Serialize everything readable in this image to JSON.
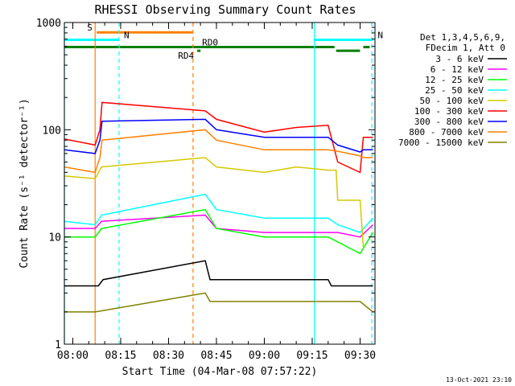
{
  "chart_data": {
    "type": "line",
    "title": "RHESSI Observing Summary Count Rates",
    "xlabel": "Start Time (04-Mar-08 07:57:22)",
    "ylabel": "Count Rate (s⁻¹ detector⁻¹)",
    "y_scale": "log",
    "ylim": [
      1,
      1000
    ],
    "xlim": [
      "07:57:22",
      "09:34:40"
    ],
    "x_ticks": [
      "08:00",
      "08:15",
      "08:30",
      "08:45",
      "09:00",
      "09:15",
      "09:30"
    ],
    "y_ticks": [
      "1",
      "10",
      "100",
      "1000"
    ],
    "legend_position": "right",
    "legend_header": [
      "Det 1,3,4,5,6,9,",
      "FDecim 1, Att 0"
    ],
    "series": [
      {
        "name": "3 - 6 keV",
        "color": "#000000",
        "points": [
          [
            "07:57:22",
            3.5
          ],
          [
            "08:08:00",
            3.5
          ],
          [
            "08:09:30",
            4
          ],
          [
            "08:41:30",
            6
          ],
          [
            "08:43:00",
            4
          ],
          [
            "09:20:00",
            4
          ],
          [
            "09:21:00",
            3.5
          ],
          [
            "09:34:00",
            3.5
          ]
        ]
      },
      {
        "name": "6 - 12 keV",
        "color": "#ff00ff",
        "points": [
          [
            "07:57:22",
            12
          ],
          [
            "08:07:00",
            12
          ],
          [
            "08:09:00",
            14
          ],
          [
            "08:41:30",
            16
          ],
          [
            "08:45:00",
            12
          ],
          [
            "09:00:00",
            11
          ],
          [
            "09:20:00",
            11
          ],
          [
            "09:23:00",
            11
          ],
          [
            "09:30:00",
            10
          ],
          [
            "09:34:00",
            13
          ]
        ]
      },
      {
        "name": "12 - 25 keV",
        "color": "#00ff00",
        "points": [
          [
            "07:57:22",
            10
          ],
          [
            "08:07:00",
            10
          ],
          [
            "08:09:00",
            12
          ],
          [
            "08:41:30",
            18
          ],
          [
            "08:45:00",
            12
          ],
          [
            "09:00:00",
            10
          ],
          [
            "09:20:00",
            10
          ],
          [
            "09:23:00",
            9
          ],
          [
            "09:30:00",
            7
          ],
          [
            "09:34:00",
            11
          ]
        ]
      },
      {
        "name": "25 - 50 keV",
        "color": "#00ffff",
        "points": [
          [
            "07:57:22",
            14
          ],
          [
            "08:07:00",
            13
          ],
          [
            "08:09:00",
            16
          ],
          [
            "08:41:30",
            25
          ],
          [
            "08:45:00",
            18
          ],
          [
            "09:00:00",
            15
          ],
          [
            "09:20:00",
            15
          ],
          [
            "09:23:00",
            13
          ],
          [
            "09:30:00",
            11
          ],
          [
            "09:34:00",
            15
          ]
        ]
      },
      {
        "name": "50 - 100 keV",
        "color": "#d4c800",
        "points": [
          [
            "07:57:22",
            37
          ],
          [
            "08:07:00",
            35
          ],
          [
            "08:09:00",
            45
          ],
          [
            "08:41:30",
            55
          ],
          [
            "08:45:00",
            45
          ],
          [
            "09:00:00",
            40
          ],
          [
            "09:10:00",
            45
          ],
          [
            "09:20:00",
            42
          ],
          [
            "09:22:30",
            42
          ],
          [
            "09:23:00",
            22
          ],
          [
            "09:30:00",
            22
          ],
          [
            "09:31:00",
            8
          ]
        ]
      },
      {
        "name": "100 - 300 keV",
        "color": "#ff0000",
        "points": [
          [
            "07:57:22",
            82
          ],
          [
            "08:07:00",
            72
          ],
          [
            "08:08:30",
            100
          ],
          [
            "08:09:10",
            180
          ],
          [
            "08:41:30",
            150
          ],
          [
            "08:45:00",
            125
          ],
          [
            "09:00:00",
            95
          ],
          [
            "09:10:00",
            105
          ],
          [
            "09:20:00",
            110
          ],
          [
            "09:23:00",
            50
          ],
          [
            "09:30:00",
            40
          ],
          [
            "09:31:00",
            85
          ],
          [
            "09:34:00",
            85
          ]
        ]
      },
      {
        "name": "300 - 800 keV",
        "color": "#0000ff",
        "points": [
          [
            "07:57:22",
            65
          ],
          [
            "08:07:00",
            60
          ],
          [
            "08:08:30",
            80
          ],
          [
            "08:09:10",
            120
          ],
          [
            "08:41:30",
            125
          ],
          [
            "08:45:00",
            100
          ],
          [
            "09:00:00",
            85
          ],
          [
            "09:10:00",
            85
          ],
          [
            "09:20:00",
            85
          ],
          [
            "09:23:00",
            72
          ],
          [
            "09:30:00",
            62
          ],
          [
            "09:31:00",
            65
          ],
          [
            "09:34:00",
            65
          ]
        ]
      },
      {
        "name": "800 - 7000 keV",
        "color": "#ff8000",
        "points": [
          [
            "07:57:22",
            45
          ],
          [
            "08:07:00",
            40
          ],
          [
            "08:08:30",
            55
          ],
          [
            "08:09:10",
            80
          ],
          [
            "08:41:30",
            100
          ],
          [
            "08:45:00",
            80
          ],
          [
            "09:00:00",
            65
          ],
          [
            "09:10:00",
            65
          ],
          [
            "09:20:00",
            65
          ],
          [
            "09:23:00",
            63
          ],
          [
            "09:30:00",
            57
          ],
          [
            "09:31:00",
            55
          ],
          [
            "09:34:00",
            55
          ]
        ]
      },
      {
        "name": "7000 - 15000 keV",
        "color": "#808000",
        "points": [
          [
            "07:57:22",
            2
          ],
          [
            "08:07:00",
            2
          ],
          [
            "08:41:30",
            3
          ],
          [
            "08:43:00",
            2.5
          ],
          [
            "09:23:00",
            2.5
          ],
          [
            "09:30:00",
            2.5
          ],
          [
            "09:34:00",
            2
          ]
        ]
      }
    ],
    "flag_bars": [
      {
        "label": "S",
        "color": "#ff8000",
        "start": "08:07:30",
        "end": "08:37:30",
        "y": 810
      },
      {
        "label": "N",
        "color": "#00ffff",
        "start": "07:57:22",
        "end": "08:14:30",
        "y": 690
      },
      {
        "label": "N",
        "color": "#00ffff",
        "start": "09:15:40",
        "end": "09:34:00",
        "y": 690
      },
      {
        "label": "RD0",
        "color": "#008000",
        "start": "07:57:22",
        "end": "09:22:00",
        "y": 590
      },
      {
        "label": "RD4",
        "color": "#008000",
        "start": "08:39:00",
        "end": "08:39:40",
        "y": 545
      },
      {
        "label": "",
        "color": "#008000",
        "start": "09:22:30",
        "end": "09:30:00",
        "y": 545
      },
      {
        "label": "",
        "color": "#008000",
        "start": "09:31:00",
        "end": "09:33:00",
        "y": 590
      }
    ],
    "vertical_markers": [
      {
        "time": "07:57:22",
        "color": "#00ffff",
        "style": "solid"
      },
      {
        "time": "08:07:00",
        "color": "#ff8000",
        "style": "solid"
      },
      {
        "time": "08:14:30",
        "color": "#00ffff",
        "style": "dashed"
      },
      {
        "time": "08:37:40",
        "color": "#ff8000",
        "style": "dashed"
      },
      {
        "time": "09:15:40",
        "color": "#00ffff",
        "style": "solid"
      },
      {
        "time": "09:33:40",
        "color": "#00ffff",
        "style": "dashed"
      }
    ],
    "timestamp": "13-Oct-2021 23:10"
  }
}
